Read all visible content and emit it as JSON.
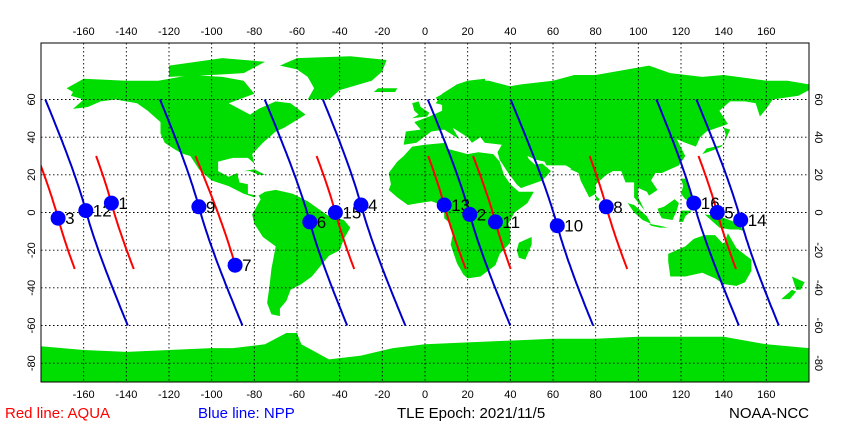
{
  "map": {
    "lon_ticks": [
      "-160",
      "-140",
      "-120",
      "-100",
      "-80",
      "-60",
      "-40",
      "-20",
      "0",
      "20",
      "40",
      "60",
      "80",
      "100",
      "120",
      "140",
      "160"
    ],
    "lat_ticks": [
      "60",
      "40",
      "20",
      "0",
      "-20",
      "-40",
      "-60",
      "-80"
    ],
    "lon_range": [
      -180,
      180
    ],
    "lat_range": [
      -90,
      90
    ],
    "land_color": "#00dd00",
    "aqua_color": "#ff0000",
    "npp_color": "#0000cc",
    "marker_color": "#0000ff",
    "passes": [
      {
        "sat": "AQUA",
        "label": "3",
        "lon": -172,
        "lat": -3
      },
      {
        "sat": "NPP",
        "label": "12",
        "lon": -159,
        "lat": 1
      },
      {
        "sat": "AQUA",
        "label": "1",
        "lon": -147,
        "lat": 5
      },
      {
        "sat": "NPP",
        "label": "9",
        "lon": -106,
        "lat": 3
      },
      {
        "sat": "AQUA",
        "label": "7",
        "lon": -89,
        "lat": -28
      },
      {
        "sat": "NPP",
        "label": "6",
        "lon": -54,
        "lat": -5
      },
      {
        "sat": "AQUA",
        "label": "15",
        "lon": -42,
        "lat": 0
      },
      {
        "sat": "NPP",
        "label": "4",
        "lon": -30,
        "lat": 4
      },
      {
        "sat": "AQUA",
        "label": "13",
        "lon": 9,
        "lat": 4
      },
      {
        "sat": "NPP",
        "label": "2",
        "lon": 21,
        "lat": -1
      },
      {
        "sat": "AQUA",
        "label": "11",
        "lon": 33,
        "lat": -5
      },
      {
        "sat": "NPP",
        "label": "10",
        "lon": 62,
        "lat": -7
      },
      {
        "sat": "AQUA",
        "label": "8",
        "lon": 85,
        "lat": 3
      },
      {
        "sat": "NPP",
        "label": "16",
        "lon": 126,
        "lat": 5
      },
      {
        "sat": "AQUA",
        "label": "5",
        "lon": 137,
        "lat": 0
      },
      {
        "sat": "NPP",
        "label": "14",
        "lon": 148,
        "lat": -4
      }
    ]
  },
  "footer": {
    "aqua_legend": "Red line: AQUA",
    "npp_legend": "Blue line: NPP",
    "epoch": "TLE Epoch: 2021/11/5",
    "credit": "NOAA-NCC"
  }
}
